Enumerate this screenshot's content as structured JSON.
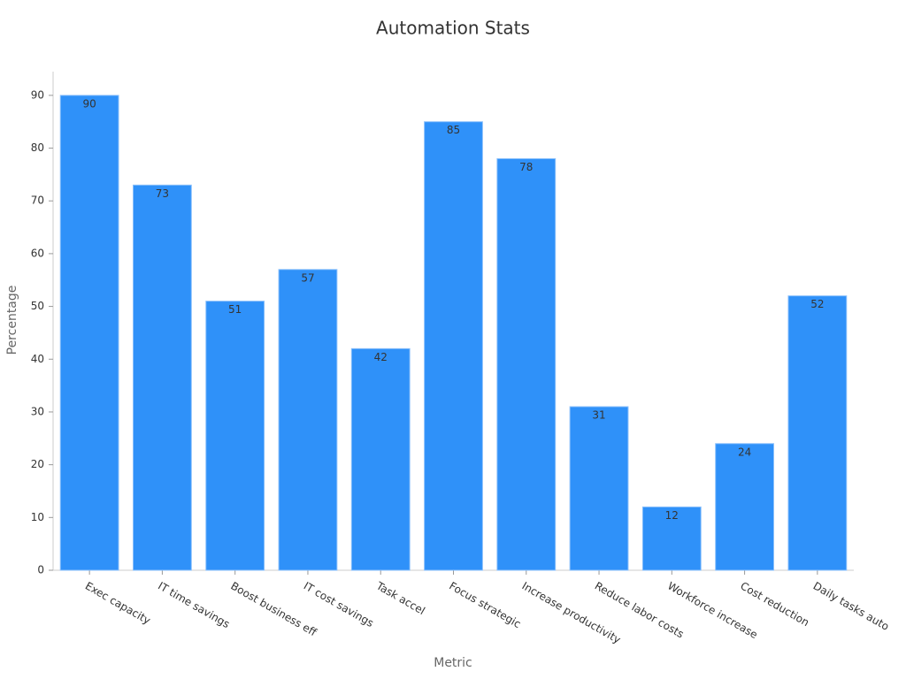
{
  "chart_data": {
    "type": "bar",
    "title": "Automation Stats",
    "x_label": "Metric",
    "y_label": "Percentage",
    "categories": [
      "Exec capacity",
      "IT time savings",
      "Boost business eff",
      "IT cost savings",
      "Task accel",
      "Focus strategic",
      "Increase productivity",
      "Reduce labor costs",
      "Workforce increase",
      "Cost reduction",
      "Daily tasks auto"
    ],
    "values": [
      90,
      73,
      51,
      57,
      42,
      85,
      78,
      31,
      12,
      24,
      52
    ],
    "color": "#2f91f9",
    "ylim": [
      0,
      94.5
    ],
    "yticks": [
      0,
      10,
      20,
      30,
      40,
      50,
      60,
      70,
      80,
      90
    ],
    "grid": false
  }
}
